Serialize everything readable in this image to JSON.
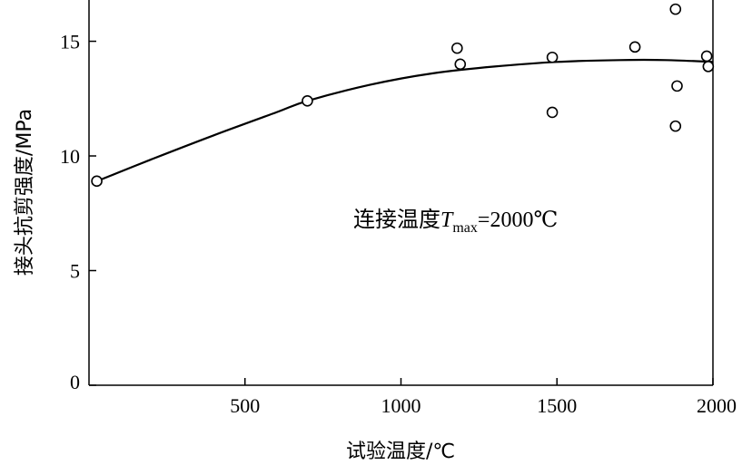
{
  "chart_data": {
    "type": "scatter",
    "title": "",
    "xlabel": "试验温度/℃",
    "ylabel": "接头抗剪强度/MPa",
    "xlim": [
      0,
      2000
    ],
    "ylim": [
      0,
      16.8
    ],
    "x_ticks": [
      "500",
      "1000",
      "1500",
      "2000"
    ],
    "y_ticks": [
      "0",
      "5",
      "10",
      "15"
    ],
    "grid": false,
    "annotation": {
      "prefix": "连接温度",
      "symbol": "T",
      "subscript": "max",
      "suffix": "=2000℃"
    },
    "series": [
      {
        "style": "open-circle",
        "x": [
          25,
          700,
          1180,
          1190,
          1485,
          1485,
          1750,
          1880,
          1880,
          1885,
          1980,
          1985
        ],
        "y": [
          8.9,
          12.4,
          14.7,
          14.0,
          14.3,
          11.9,
          14.75,
          16.4,
          11.3,
          13.05,
          14.35,
          13.9
        ]
      },
      {
        "style": "fit-curve",
        "x": [
          25,
          200,
          400,
          600,
          700,
          900,
          1100,
          1300,
          1500,
          1700,
          1850,
          2000
        ],
        "y": [
          8.9,
          9.85,
          10.9,
          11.9,
          12.4,
          13.1,
          13.6,
          13.9,
          14.1,
          14.18,
          14.18,
          14.1
        ]
      }
    ]
  }
}
